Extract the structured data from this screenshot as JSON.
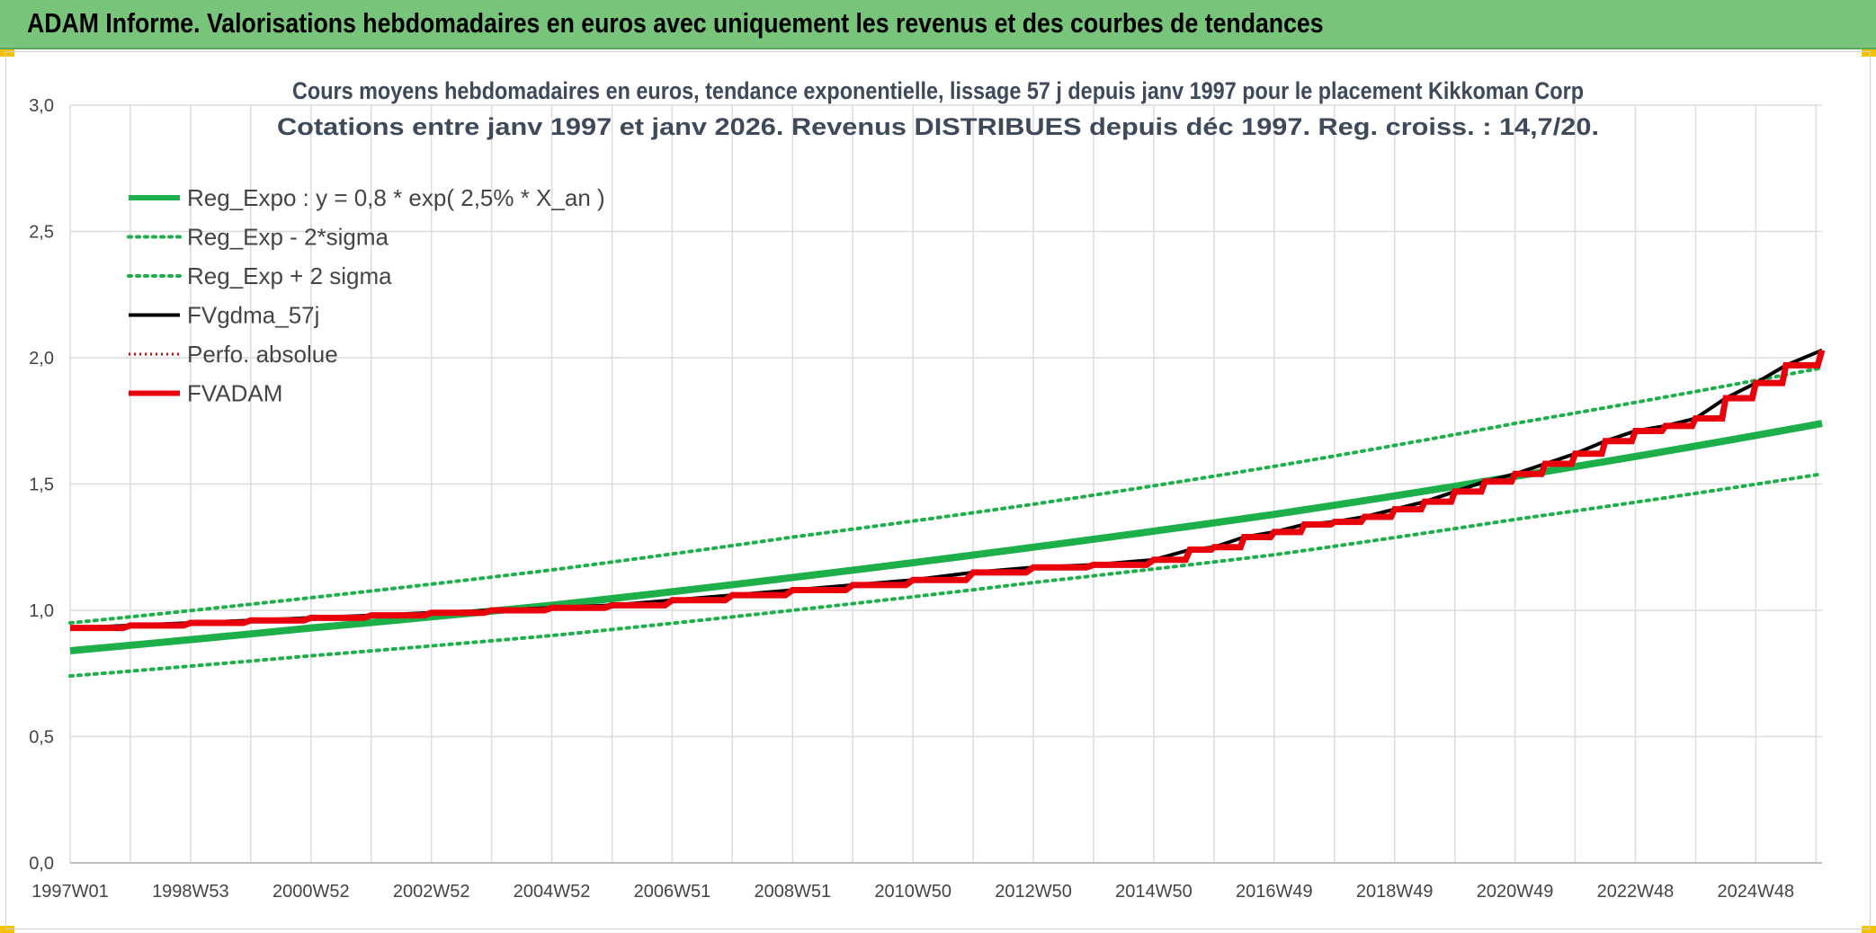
{
  "header": {
    "title": "ADAM Informe. Valorisations hebdomadaires en euros avec uniquement les revenus et des courbes de tendances",
    "accent_color": "#78c47a"
  },
  "chart_data": {
    "type": "line",
    "title_line1": "Cours moyens hebdomadaires en euros, tendance exponentielle, lissage 57 j depuis janv 1997 pour le placement Kikkoman Corp",
    "title_line2": "Cotations entre janv 1997 et janv 2026. Revenus DISTRIBUES depuis déc 1997. Reg. croiss. : 14,7/20.",
    "xlabel": "",
    "ylabel": "",
    "xlim": [
      1997.0,
      2026.1
    ],
    "ylim": [
      0,
      3.0
    ],
    "y_ticks": [
      0.0,
      0.5,
      1.0,
      1.5,
      2.0,
      2.5,
      3.0
    ],
    "y_tick_labels": [
      "0,0",
      "0,5",
      "1,0",
      "1,5",
      "2,0",
      "2,5",
      "3,0"
    ],
    "x_tick_labels": [
      "1997W01",
      "1998W53",
      "2000W52",
      "2002W52",
      "2004W52",
      "2006W51",
      "2008W51",
      "2010W50",
      "2012W50",
      "2014W50",
      "2016W49",
      "2018W49",
      "2020W49",
      "2022W48",
      "2024W48"
    ],
    "x_tick_years": [
      1997.0,
      1999.0,
      2001.0,
      2003.0,
      2005.0,
      2007.0,
      2009.0,
      2011.0,
      2013.0,
      2015.0,
      2017.0,
      2019.0,
      2021.0,
      2023.0,
      2025.0
    ],
    "grid": true,
    "legend_position": "top-left",
    "series": [
      {
        "name": "Reg_Expo : y = 0,8 * exp( 2,5% *  X_an )",
        "key": "reg",
        "color": "#1db04a",
        "style": "solid-thick",
        "x": [
          1997.0,
          2001.0,
          2005.0,
          2009.0,
          2013.0,
          2017.0,
          2021.0,
          2026.1
        ],
        "values": [
          0.84,
          0.93,
          1.02,
          1.13,
          1.25,
          1.38,
          1.53,
          1.74
        ]
      },
      {
        "name": "Reg_Exp - 2*sigma",
        "key": "lower",
        "color": "#1db04a",
        "style": "dotted",
        "x": [
          1997.0,
          2001.0,
          2005.0,
          2009.0,
          2013.0,
          2017.0,
          2021.0,
          2026.1
        ],
        "values": [
          0.74,
          0.82,
          0.9,
          1.0,
          1.11,
          1.22,
          1.36,
          1.54
        ]
      },
      {
        "name": "Reg_Exp + 2 sigma",
        "key": "upper",
        "color": "#1db04a",
        "style": "dotted",
        "x": [
          1997.0,
          2001.0,
          2005.0,
          2009.0,
          2013.0,
          2017.0,
          2021.0,
          2026.1
        ],
        "values": [
          0.95,
          1.05,
          1.16,
          1.29,
          1.42,
          1.57,
          1.74,
          1.96
        ]
      },
      {
        "name": "FVgdma_57j",
        "key": "gdma",
        "color": "#000000",
        "style": "solid",
        "x": [
          1997.0,
          1998.0,
          1999.0,
          2000.0,
          2001.0,
          2002.0,
          2003.0,
          2004.0,
          2005.0,
          2006.0,
          2007.0,
          2008.0,
          2009.0,
          2010.0,
          2011.0,
          2012.0,
          2013.0,
          2014.0,
          2015.0,
          2015.6,
          2016.0,
          2016.5,
          2017.0,
          2017.5,
          2018.0,
          2018.5,
          2019.0,
          2019.5,
          2020.0,
          2020.5,
          2021.0,
          2021.5,
          2022.0,
          2022.5,
          2023.0,
          2023.5,
          2024.0,
          2024.5,
          2025.0,
          2025.5,
          2026.1
        ],
        "values": [
          0.93,
          0.94,
          0.95,
          0.96,
          0.97,
          0.98,
          0.99,
          1.0,
          1.01,
          1.02,
          1.04,
          1.06,
          1.08,
          1.1,
          1.12,
          1.15,
          1.17,
          1.18,
          1.2,
          1.24,
          1.25,
          1.29,
          1.31,
          1.34,
          1.35,
          1.37,
          1.4,
          1.43,
          1.47,
          1.51,
          1.54,
          1.58,
          1.62,
          1.67,
          1.71,
          1.73,
          1.76,
          1.84,
          1.9,
          1.97,
          2.03
        ]
      },
      {
        "name": "Perfo. absolue",
        "key": "perfo",
        "color": "#e00000",
        "style": "dotted-thin",
        "x": [],
        "values": []
      },
      {
        "name": "FVADAM",
        "key": "fvadam",
        "color": "#e8000b",
        "style": "step-thick",
        "x": [
          1997.0,
          1998.0,
          1999.0,
          2000.0,
          2001.0,
          2002.0,
          2003.0,
          2004.0,
          2005.0,
          2006.0,
          2007.0,
          2008.0,
          2009.0,
          2010.0,
          2011.0,
          2012.0,
          2013.0,
          2014.0,
          2015.0,
          2015.6,
          2016.0,
          2016.5,
          2017.0,
          2017.5,
          2018.0,
          2018.5,
          2019.0,
          2019.5,
          2020.0,
          2020.5,
          2021.0,
          2021.5,
          2022.0,
          2022.5,
          2023.0,
          2023.5,
          2024.0,
          2024.5,
          2025.0,
          2025.5,
          2026.1
        ],
        "values": [
          0.93,
          0.94,
          0.95,
          0.96,
          0.97,
          0.98,
          0.99,
          1.0,
          1.01,
          1.02,
          1.04,
          1.06,
          1.08,
          1.1,
          1.12,
          1.15,
          1.17,
          1.18,
          1.2,
          1.24,
          1.25,
          1.29,
          1.31,
          1.34,
          1.35,
          1.37,
          1.4,
          1.43,
          1.47,
          1.51,
          1.54,
          1.58,
          1.62,
          1.67,
          1.71,
          1.73,
          1.76,
          1.84,
          1.9,
          1.97,
          2.03
        ]
      }
    ]
  }
}
